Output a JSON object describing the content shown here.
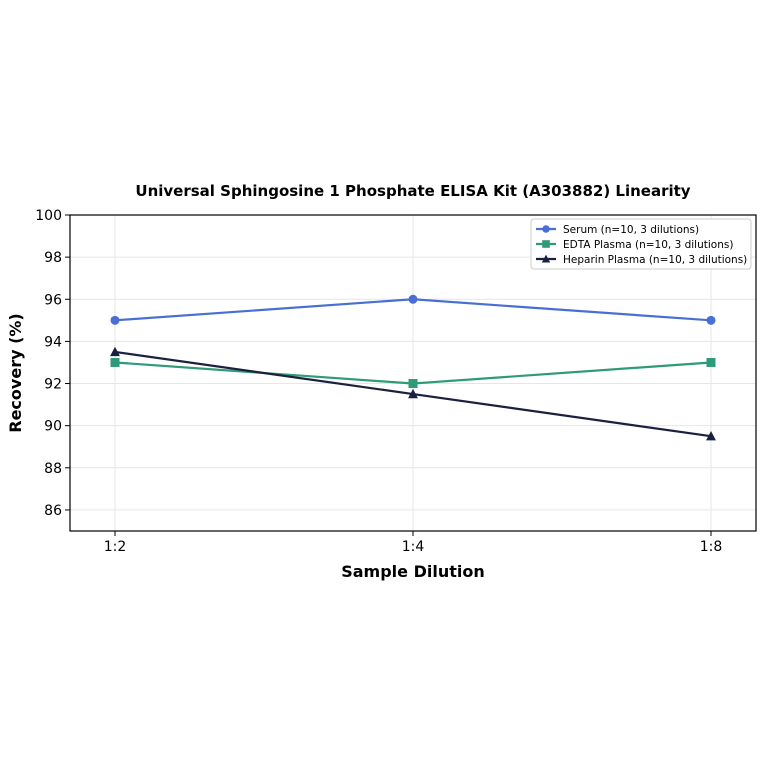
{
  "chart_data": {
    "type": "line",
    "title": "Universal Sphingosine 1 Phosphate ELISA Kit (A303882) Linearity",
    "xlabel": "Sample Dilution",
    "ylabel": "Recovery (%)",
    "categories": [
      "1:2",
      "1:4",
      "1:8"
    ],
    "ylim": [
      85,
      100
    ],
    "yticks": [
      86,
      88,
      90,
      92,
      94,
      96,
      98,
      100
    ],
    "grid": true,
    "legend_position": "top-right",
    "series": [
      {
        "name": "Serum (n=10, 3 dilutions)",
        "values": [
          95,
          96,
          95
        ],
        "color": "#4a6fd4",
        "marker": "circle"
      },
      {
        "name": "EDTA Plasma (n=10, 3 dilutions)",
        "values": [
          93,
          92,
          93
        ],
        "color": "#2e9a78",
        "marker": "square"
      },
      {
        "name": "Heparin Plasma (n=10, 3 dilutions)",
        "values": [
          93.5,
          91.5,
          89.5
        ],
        "color": "#1a2040",
        "marker": "triangle"
      }
    ]
  }
}
